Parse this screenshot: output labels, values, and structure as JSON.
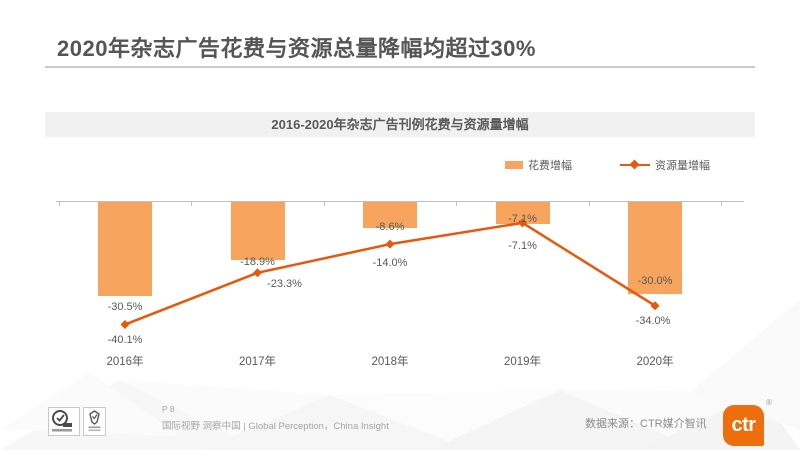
{
  "page": {
    "title": "2020年杂志广告花费与资源总量降幅均超过30%",
    "footer": {
      "page_number": "P 8",
      "tagline": "国际视野 洞察中国 | Global Perception，China Insight",
      "source_label": "数据来源：CTR媒介智讯",
      "logo_text": "ctr",
      "logo_registered": "®"
    }
  },
  "icons": {
    "certification_badge_1": "circle-check-badge",
    "certification_badge_2": "ribbon-check-badge",
    "legend_bar": "bar-swatch",
    "legend_line": "line-with-diamond-marker"
  },
  "colors": {
    "bar": "#F6A45E",
    "line": "#E8580C",
    "logo": "#EC6E0C",
    "text_gray": "#595959",
    "axis": "#BFBFBF"
  },
  "chart_data": {
    "type": "bar",
    "subtype": "bar-line-combo",
    "title": "2016-2020年杂志广告刊例花费与资源量增幅",
    "categories": [
      "2016年",
      "2017年",
      "2018年",
      "2019年",
      "2020年"
    ],
    "series": [
      {
        "name": "花费增幅",
        "type": "bar",
        "color": "#F6A45E",
        "values": [
          -30.5,
          -18.9,
          -8.6,
          -7.1,
          -30.0
        ],
        "labels": [
          "-30.5%",
          "-18.9%",
          "-8.6%",
          "-7.1%",
          "-30.0%"
        ]
      },
      {
        "name": "资源量增幅",
        "type": "line",
        "color": "#E8580C",
        "marker": "diamond",
        "values": [
          -40.1,
          -23.3,
          -14.0,
          -7.1,
          -34.0
        ],
        "labels": [
          "-40.1%",
          "-23.3%",
          "-14.0%",
          "-7.1%",
          "-34.0%"
        ]
      }
    ],
    "xlabel": "",
    "ylabel": "",
    "ylim": [
      -45,
      0
    ],
    "grid": false,
    "y_axis_visible": false,
    "legend_position": "top-right",
    "value_suffix": "%"
  }
}
